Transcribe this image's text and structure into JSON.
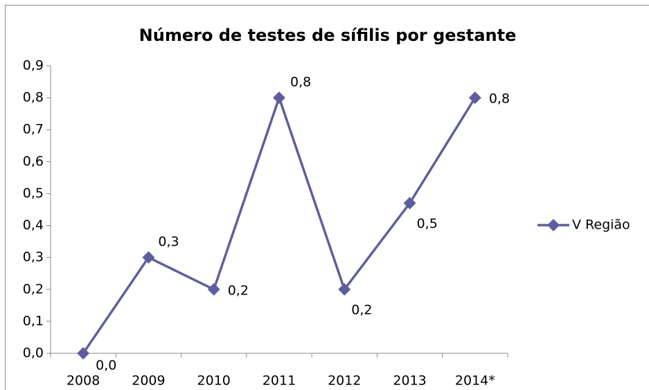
{
  "chart_data": {
    "type": "line",
    "title": "Número de testes de sífilis por gestante",
    "categories": [
      "2008",
      "2009",
      "2010",
      "2011",
      "2012",
      "2013",
      "2014*"
    ],
    "series": [
      {
        "name": "V Região",
        "color": "#5e5e9e",
        "values": [
          0.0,
          0.3,
          0.2,
          0.8,
          0.2,
          0.47,
          0.8
        ],
        "value_labels": [
          "0,0",
          "0,3",
          "0,2",
          "0,8",
          "0,2",
          "0,5",
          "0,8"
        ]
      }
    ],
    "ylim": [
      0,
      0.9
    ],
    "yticks": [
      {
        "value": 0,
        "label": "0,0"
      },
      {
        "value": 0.1,
        "label": "0,1"
      },
      {
        "value": 0.2,
        "label": "0,2"
      },
      {
        "value": 0.3,
        "label": "0,3"
      },
      {
        "value": 0.4,
        "label": "0,4"
      },
      {
        "value": 0.5,
        "label": "0,5"
      },
      {
        "value": 0.6,
        "label": "0,6"
      },
      {
        "value": 0.7,
        "label": "0,7"
      },
      {
        "value": 0.8,
        "label": "0,8"
      },
      {
        "value": 0.9,
        "label": "0,9"
      }
    ],
    "legend": "right"
  }
}
